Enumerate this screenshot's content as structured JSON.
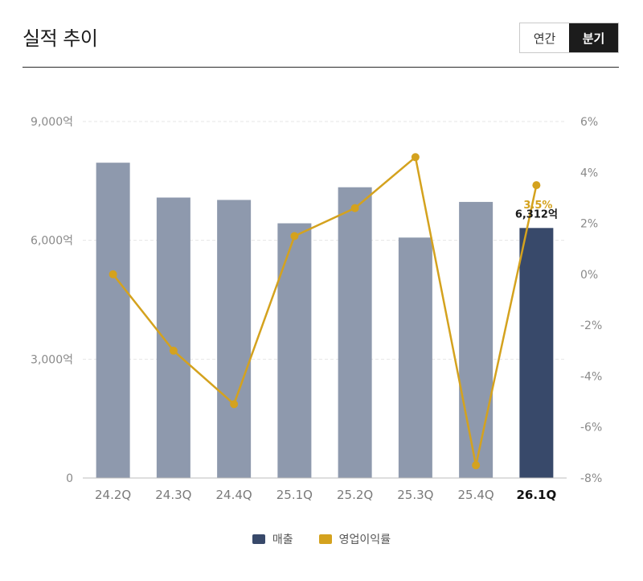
{
  "header": {
    "title": "실적 추이",
    "tabs": [
      {
        "label": "연간",
        "active": false
      },
      {
        "label": "분기",
        "active": true
      }
    ]
  },
  "legend": {
    "revenue_label": "매출",
    "margin_label": "영업이익률"
  },
  "colors": {
    "bar": "#8e99ad",
    "bar_highlight": "#38496a",
    "line": "#d4a21e",
    "grid": "#e6e6e6",
    "tick": "#8a8a8a"
  },
  "chart_data": {
    "type": "bar",
    "categories": [
      "24.2Q",
      "24.3Q",
      "24.4Q",
      "25.1Q",
      "25.2Q",
      "25.3Q",
      "25.4Q",
      "26.1Q"
    ],
    "highlight_index": 7,
    "series": [
      {
        "name": "매출",
        "type": "bar",
        "axis": "left",
        "unit": "억",
        "values": [
          7960,
          7080,
          7020,
          6430,
          7340,
          6070,
          6970,
          6312
        ]
      },
      {
        "name": "영업이익률",
        "type": "line",
        "axis": "right",
        "unit": "%",
        "values": [
          0.0,
          -3.0,
          -5.1,
          1.5,
          2.6,
          4.6,
          -7.5,
          3.5
        ]
      }
    ],
    "y_left": {
      "min": 0,
      "max": 9000,
      "ticks": [
        0,
        3000,
        6000,
        9000
      ],
      "tick_labels": [
        "0",
        "3,000억",
        "6,000억",
        "9,000억"
      ]
    },
    "y_right": {
      "min": -8,
      "max": 6,
      "ticks": [
        -8,
        -6,
        -4,
        -2,
        0,
        2,
        4,
        6
      ],
      "tick_labels": [
        "-8%",
        "-6%",
        "-4%",
        "-2%",
        "0%",
        "2%",
        "4%",
        "6%"
      ]
    },
    "data_labels": {
      "bar": "6,312억",
      "line": "3.5%"
    },
    "grid": true,
    "legend_position": "bottom"
  }
}
